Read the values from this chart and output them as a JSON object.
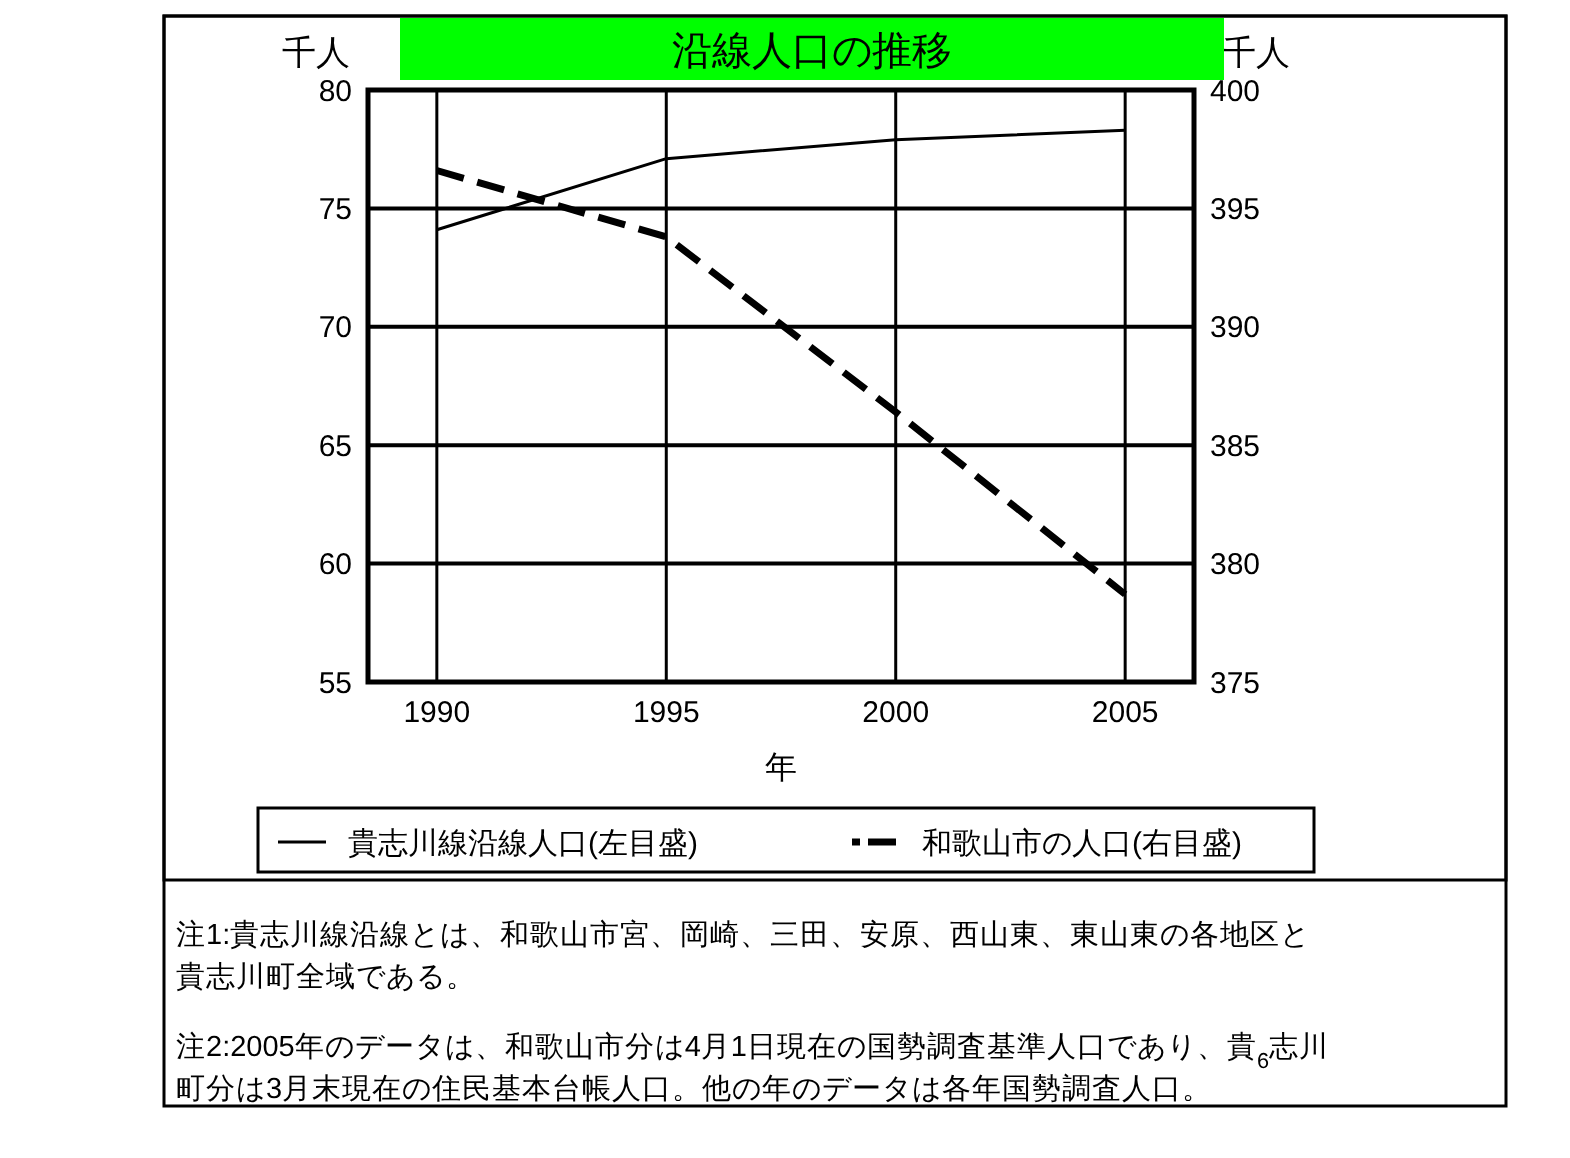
{
  "chart_data": {
    "type": "line",
    "title": "沿線人口の推移",
    "xlabel": "年",
    "ylabel": "千人",
    "y2label": "千人",
    "x": [
      1990,
      1995,
      2000,
      2005
    ],
    "xlim": [
      1988.5,
      2006.5
    ],
    "xticks": [
      1990,
      1995,
      2000,
      2005
    ],
    "ylim": [
      55,
      80
    ],
    "yticks": [
      55,
      60,
      65,
      70,
      75,
      80
    ],
    "y2lim": [
      375,
      400
    ],
    "y2ticks": [
      375,
      380,
      385,
      390,
      395,
      400
    ],
    "grid": true,
    "legend": "bottom",
    "series": [
      {
        "name": "貴志川線沿線人口(左目盛)",
        "color": "#000000",
        "line_style": "solid",
        "values": [
          74.1,
          77.1,
          77.9,
          78.3
        ]
      },
      {
        "name": "和歌山市の人口(右目盛)",
        "color": "#000000",
        "line_style": "dashed",
        "axis": "y2",
        "values": [
          396.6,
          393.8,
          386.4,
          378.7
        ]
      }
    ],
    "annotations": [
      "注1:貴志川線沿線とは、和歌山市宮、岡崎、三田、安原、西山東、東山東の各地区と貴志川町全域である。",
      "注2:2005年のデータは、和歌山市分は4月1日現在の国勢調査基準人口であり、貴$_{6}$志川町分は3月末現在の住民基本台帳人口。他の年のデータは各年国勢調査人口。"
    ]
  }
}
